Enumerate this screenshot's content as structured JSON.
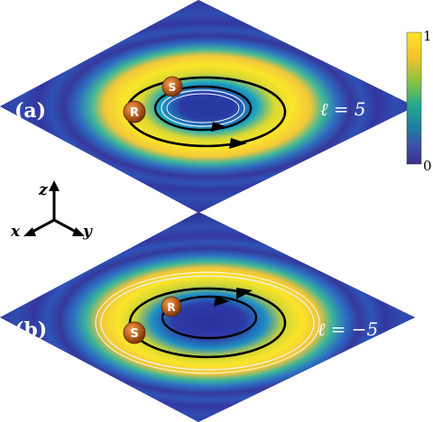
{
  "panels": [
    {
      "id": "a",
      "label": "(a)",
      "ell": "ℓ = 5",
      "balls": {
        "outer": "R",
        "inner": "S"
      }
    },
    {
      "id": "b",
      "label": "(b)",
      "ell": "ℓ = −5",
      "balls": {
        "outer": "S",
        "inner": "R"
      }
    }
  ],
  "colorbar": {
    "max_label": "1",
    "min_label": "0",
    "colormap": [
      "#fde725",
      "#f5c32a",
      "#85c442",
      "#23a98b",
      "#1f7ea2",
      "#3b4fa6",
      "#3a2f8b"
    ]
  },
  "axes": {
    "x": "x",
    "y": "y",
    "z": "z"
  },
  "colors": {
    "field_dark": "#2c2f9a",
    "ring_bright": "#f6e12a",
    "ball": "#b85a1e"
  }
}
